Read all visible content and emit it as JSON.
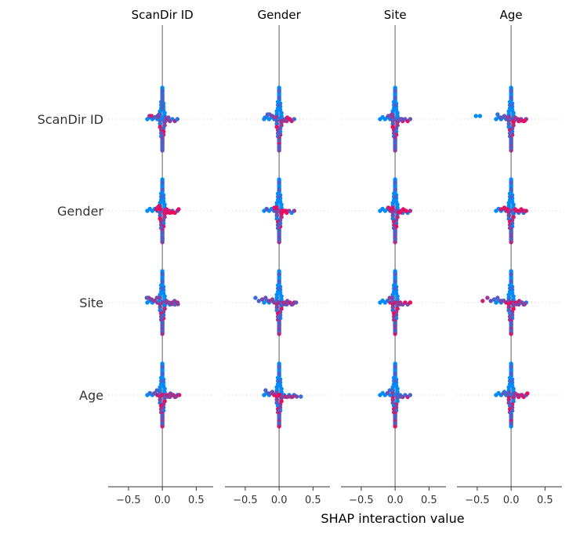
{
  "chart_data": {
    "type": "scatter",
    "title": "",
    "xlabel": "SHAP interaction value",
    "xlim": [
      -0.8,
      0.75
    ],
    "xticks": [
      -0.5,
      0.0,
      0.5
    ],
    "xtick_labels": [
      "−0.5",
      "0.0",
      "0.5"
    ],
    "features": [
      "ScanDir ID",
      "Gender",
      "Site",
      "Age"
    ],
    "colors": {
      "low": "#008bfb",
      "high": "#ff0052",
      "mid": "#8f2ecb",
      "line": "#999999",
      "axis": "#333333",
      "grid": "#dddddd"
    },
    "panels": [
      {
        "title": "ScanDir ID",
        "rows": [
          {
            "feature": "ScanDir ID",
            "points": [
              [
                -0.19,
                0.5
              ],
              [
                -0.16,
                0.9
              ],
              [
                -0.12,
                0.3
              ],
              [
                -0.09,
                0.2
              ],
              [
                -0.07,
                0.6
              ],
              [
                -0.05,
                0.4
              ],
              [
                0.03,
                0.55
              ],
              [
                0.05,
                0.3
              ],
              [
                0.07,
                0.7
              ],
              [
                0.09,
                0.45
              ],
              [
                0.0,
                -4
              ],
              [
                0.0,
                -3.5
              ],
              [
                0.0,
                -3
              ],
              [
                0.0,
                -2.5
              ],
              [
                0.0,
                -2
              ],
              [
                0.0,
                -1.5
              ],
              [
                0.0,
                -1
              ],
              [
                0.0,
                3
              ],
              [
                0.0,
                3.5
              ],
              [
                0.0,
                4
              ]
            ]
          },
          {
            "feature": "Gender",
            "points": [
              [
                -0.09,
                0.9
              ],
              [
                -0.07,
                0.8
              ],
              [
                -0.05,
                0.9
              ],
              [
                -0.03,
                0.95
              ],
              [
                0.04,
                0.9
              ],
              [
                0.06,
                0.85
              ],
              [
                0.08,
                0.9
              ],
              [
                0.1,
                0.8
              ],
              [
                0.14,
                0.95
              ],
              [
                0.24,
                0.9
              ],
              [
                0.0,
                -4
              ],
              [
                0.0,
                -3
              ],
              [
                0.0,
                -2
              ],
              [
                0.0,
                3
              ],
              [
                0.0,
                4
              ]
            ]
          },
          {
            "feature": "Site",
            "points": [
              [
                -0.23,
                0.3
              ],
              [
                -0.2,
                0.55
              ],
              [
                -0.16,
                0.5
              ],
              [
                -0.12,
                0.6
              ],
              [
                -0.08,
                0.5
              ],
              [
                -0.05,
                0.55
              ],
              [
                0.06,
                0.55
              ],
              [
                0.1,
                0.5
              ],
              [
                0.14,
                0.6
              ],
              [
                0.18,
                0.5
              ],
              [
                0.23,
                0.55
              ],
              [
                0.0,
                -4
              ],
              [
                0.0,
                -3
              ],
              [
                0.0,
                -2
              ],
              [
                0.0,
                2
              ],
              [
                0.0,
                3
              ],
              [
                0.0,
                4
              ]
            ]
          },
          {
            "feature": "Age",
            "points": [
              [
                -0.18,
                0.2
              ],
              [
                -0.12,
                0.4
              ],
              [
                -0.08,
                0.3
              ],
              [
                0.08,
                0.6
              ],
              [
                0.12,
                0.5
              ],
              [
                0.16,
                0.7
              ],
              [
                0.2,
                0.6
              ],
              [
                0.25,
                0.8
              ],
              [
                0.0,
                -4
              ],
              [
                0.0,
                -3
              ],
              [
                0.0,
                -2
              ],
              [
                0.0,
                3
              ],
              [
                0.0,
                4
              ]
            ]
          }
        ]
      },
      {
        "title": "Gender",
        "rows": [
          {
            "feature": "ScanDir ID",
            "points": [
              [
                -0.21,
                0.1
              ],
              [
                -0.17,
                0.4
              ],
              [
                -0.14,
                0.3
              ],
              [
                -0.1,
                0.5
              ],
              [
                -0.06,
                0.6
              ],
              [
                0.05,
                0.7
              ],
              [
                0.08,
                0.6
              ],
              [
                0.12,
                0.8
              ],
              [
                0.16,
                0.9
              ],
              [
                0.0,
                -4
              ],
              [
                0.0,
                -3
              ],
              [
                0.0,
                -2
              ],
              [
                0.0,
                2
              ],
              [
                0.0,
                3
              ],
              [
                0.0,
                4
              ]
            ]
          },
          {
            "feature": "Gender",
            "points": [
              [
                -0.18,
                0.4
              ],
              [
                -0.07,
                0.85
              ],
              [
                -0.04,
                0.9
              ],
              [
                0.04,
                0.9
              ],
              [
                0.07,
                0.95
              ],
              [
                0.1,
                0.9
              ],
              [
                0.0,
                -4
              ],
              [
                0.0,
                -3
              ],
              [
                0.0,
                -2
              ],
              [
                0.0,
                2
              ],
              [
                0.0,
                3
              ],
              [
                0.0,
                4
              ]
            ]
          },
          {
            "feature": "Site",
            "points": [
              [
                -0.35,
                0.2
              ],
              [
                -0.3,
                0.3
              ],
              [
                -0.25,
                0.5
              ],
              [
                -0.2,
                0.4
              ],
              [
                -0.15,
                0.6
              ],
              [
                -0.1,
                0.55
              ],
              [
                0.08,
                0.6
              ],
              [
                0.12,
                0.5
              ],
              [
                0.16,
                0.7
              ],
              [
                0.2,
                0.55
              ],
              [
                0.25,
                0.4
              ],
              [
                0.0,
                -4
              ],
              [
                0.0,
                -3
              ],
              [
                0.0,
                -2
              ],
              [
                0.0,
                2
              ],
              [
                0.0,
                3
              ],
              [
                0.0,
                4
              ]
            ]
          },
          {
            "feature": "Age",
            "points": [
              [
                -0.2,
                0.3
              ],
              [
                -0.15,
                0.4
              ],
              [
                -0.1,
                0.5
              ],
              [
                0.08,
                0.7
              ],
              [
                0.14,
                0.6
              ],
              [
                0.2,
                0.65
              ],
              [
                0.26,
                0.5
              ],
              [
                0.32,
                0.2
              ],
              [
                0.0,
                -4
              ],
              [
                0.0,
                -3
              ],
              [
                0.0,
                -2
              ],
              [
                0.0,
                3
              ],
              [
                0.0,
                4
              ]
            ]
          }
        ]
      },
      {
        "title": "Site",
        "rows": [
          {
            "feature": "ScanDir ID",
            "points": [
              [
                -0.1,
                0.5
              ],
              [
                -0.07,
                0.4
              ],
              [
                -0.05,
                0.6
              ],
              [
                0.05,
                0.5
              ],
              [
                0.07,
                0.3
              ],
              [
                0.1,
                0.45
              ],
              [
                0.0,
                -4
              ],
              [
                0.0,
                -3
              ],
              [
                0.0,
                -2
              ],
              [
                0.0,
                3
              ],
              [
                0.0,
                4
              ]
            ]
          },
          {
            "feature": "Gender",
            "points": [
              [
                -0.1,
                0.8
              ],
              [
                -0.06,
                0.9
              ],
              [
                -0.04,
                0.85
              ],
              [
                0.05,
                0.9
              ],
              [
                0.08,
                0.95
              ],
              [
                0.12,
                0.9
              ],
              [
                0.16,
                0.95
              ],
              [
                0.0,
                -4
              ],
              [
                0.0,
                -3
              ],
              [
                0.0,
                -2
              ],
              [
                0.0,
                3
              ],
              [
                0.0,
                4
              ]
            ]
          },
          {
            "feature": "Site",
            "points": [
              [
                -0.08,
                0.55
              ],
              [
                -0.05,
                0.6
              ],
              [
                0.05,
                0.6
              ],
              [
                0.08,
                0.55
              ],
              [
                0.0,
                -4
              ],
              [
                0.0,
                -3
              ],
              [
                0.0,
                -2
              ],
              [
                0.0,
                3
              ],
              [
                0.0,
                4
              ]
            ]
          },
          {
            "feature": "Age",
            "points": [
              [
                -0.08,
                0.2
              ],
              [
                -0.05,
                0.3
              ],
              [
                0.05,
                0.25
              ],
              [
                0.08,
                0.35
              ],
              [
                0.0,
                -4
              ],
              [
                0.0,
                -3
              ],
              [
                0.0,
                -2
              ],
              [
                0.0,
                3
              ],
              [
                0.0,
                4
              ]
            ]
          }
        ]
      },
      {
        "title": "Age",
        "rows": [
          {
            "feature": "ScanDir ID",
            "points": [
              [
                -0.52,
                0.0
              ],
              [
                -0.46,
                0.0
              ],
              [
                -0.2,
                0.2
              ],
              [
                -0.15,
                0.4
              ],
              [
                -0.1,
                0.35
              ],
              [
                -0.06,
                0.5
              ],
              [
                0.06,
                0.6
              ],
              [
                0.1,
                0.7
              ],
              [
                0.14,
                0.8
              ],
              [
                0.2,
                0.9
              ],
              [
                0.0,
                -4
              ],
              [
                0.0,
                -3
              ],
              [
                0.0,
                -2
              ],
              [
                0.0,
                2
              ],
              [
                0.0,
                3
              ],
              [
                0.0,
                4
              ]
            ]
          },
          {
            "feature": "Gender",
            "points": [
              [
                -0.15,
                0.85
              ],
              [
                -0.1,
                0.9
              ],
              [
                -0.06,
                0.95
              ],
              [
                0.06,
                0.9
              ],
              [
                0.1,
                0.85
              ],
              [
                0.15,
                0.9
              ],
              [
                0.19,
                0.8
              ],
              [
                0.0,
                -4
              ],
              [
                0.0,
                -3
              ],
              [
                0.0,
                -2
              ],
              [
                0.0,
                3
              ],
              [
                0.0,
                4
              ]
            ]
          },
          {
            "feature": "Site",
            "points": [
              [
                -0.42,
                0.8
              ],
              [
                -0.35,
                0.6
              ],
              [
                -0.3,
                0.4
              ],
              [
                -0.25,
                0.3
              ],
              [
                -0.2,
                0.35
              ],
              [
                -0.15,
                0.5
              ],
              [
                0.08,
                0.6
              ],
              [
                0.12,
                0.7
              ],
              [
                0.16,
                0.5
              ],
              [
                0.2,
                0.55
              ],
              [
                0.0,
                -4
              ],
              [
                0.0,
                -3
              ],
              [
                0.0,
                -2
              ],
              [
                0.0,
                2
              ],
              [
                0.0,
                3
              ],
              [
                0.0,
                4
              ]
            ]
          },
          {
            "feature": "Age",
            "points": [
              [
                -0.1,
                0.2
              ],
              [
                -0.06,
                0.3
              ],
              [
                0.06,
                0.6
              ],
              [
                0.1,
                0.7
              ],
              [
                0.16,
                0.8
              ],
              [
                0.24,
                0.9
              ],
              [
                0.0,
                -4
              ],
              [
                0.0,
                -3
              ],
              [
                0.0,
                -2
              ],
              [
                0.0,
                3
              ],
              [
                0.0,
                4
              ]
            ]
          }
        ]
      }
    ]
  }
}
